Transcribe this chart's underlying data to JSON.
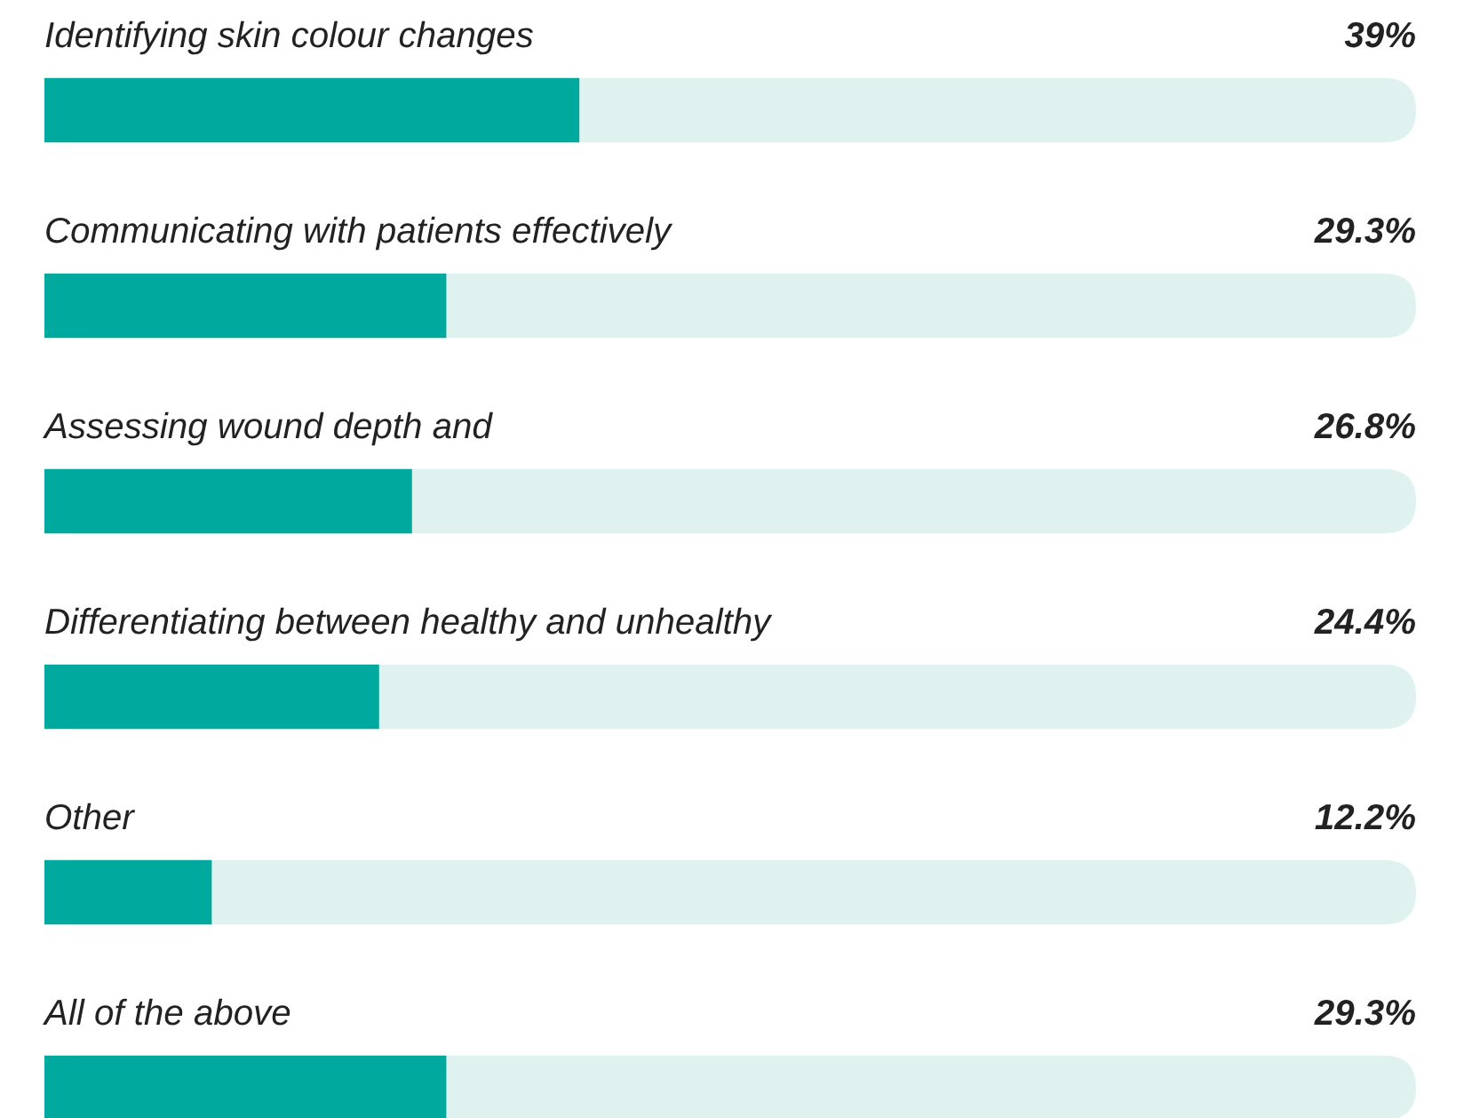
{
  "chart_data": {
    "type": "bar",
    "orientation": "horizontal",
    "categories": [
      "Identifying skin colour changes",
      "Communicating with patients effectively",
      "Assessing wound depth and",
      "Differentiating between healthy and unhealthy",
      "Other",
      "All of the above"
    ],
    "values": [
      39,
      29.3,
      26.8,
      24.4,
      12.2,
      29.3
    ],
    "value_labels": [
      "39%",
      "29.3%",
      "26.8%",
      "24.4%",
      "12.2%",
      "29.3%"
    ],
    "color": "#00a99d",
    "xlim": [
      0,
      100
    ]
  }
}
